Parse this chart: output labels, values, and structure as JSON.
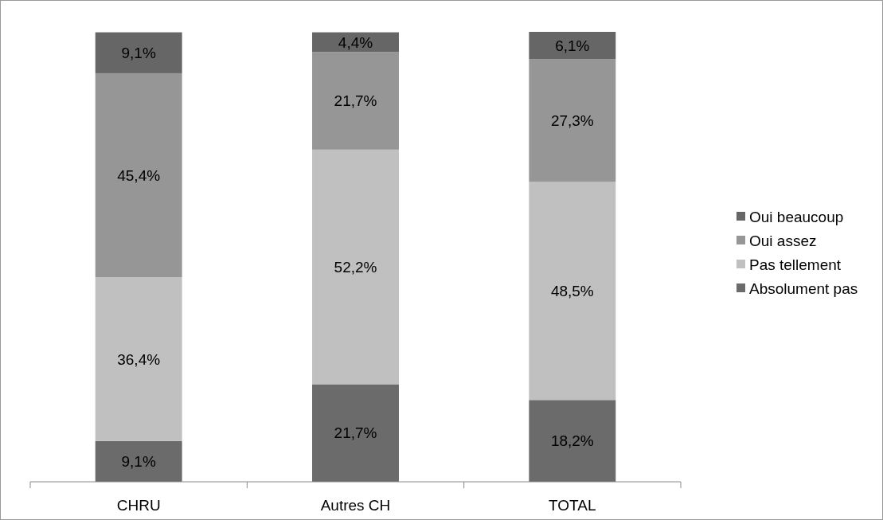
{
  "chart_data": {
    "type": "bar",
    "stacked": true,
    "categories": [
      "CHRU",
      "Autres CH",
      "TOTAL"
    ],
    "series": [
      {
        "name": "Absolument pas",
        "color": "#6b6b6b",
        "values": [
          9.1,
          21.7,
          18.2
        ],
        "value_labels": [
          "9,1%",
          "21,7%",
          "18,2%"
        ]
      },
      {
        "name": "Pas tellement",
        "color": "#c0c0c0",
        "values": [
          36.4,
          52.2,
          48.5
        ],
        "value_labels": [
          "36,4%",
          "52,2%",
          "48,5%"
        ]
      },
      {
        "name": "Oui assez",
        "color": "#969696",
        "values": [
          45.4,
          21.7,
          27.3
        ],
        "value_labels": [
          "45,4%",
          "21,7%",
          "27,3%"
        ]
      },
      {
        "name": "Oui beaucoup",
        "color": "#666666",
        "values": [
          9.1,
          4.4,
          6.1
        ],
        "value_labels": [
          "9,1%",
          "4,4%",
          "6,1%"
        ]
      }
    ],
    "legend": "right"
  }
}
